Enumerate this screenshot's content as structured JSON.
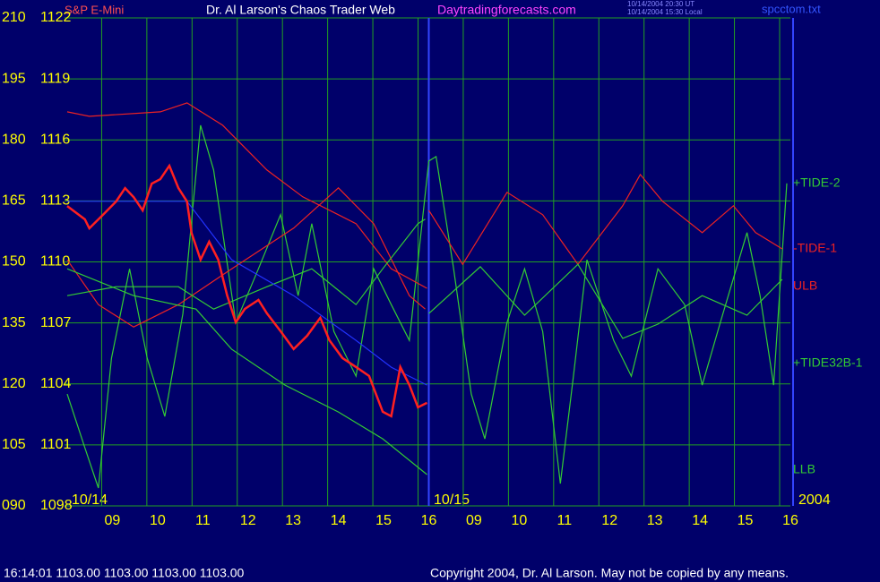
{
  "chart_data": {
    "type": "line",
    "instrument": "S&P E-Mini",
    "title": "Dr. Al Larson's Chaos Trader Web",
    "site": "Daytradingforecasts.com",
    "time_ut": "10/14/2004 20:30 UT",
    "time_local": "10/14/2004 15:30 Local",
    "file": "spcctom.txt",
    "annotations": [
      "10/14",
      "10/15",
      "2004"
    ],
    "xlim": [
      8,
      24
    ],
    "xticks": [
      {
        "value": 9,
        "label": "09"
      },
      10,
      11,
      12,
      13,
      14,
      15,
      16,
      {
        "value": 17,
        "label": "09"
      },
      {
        "value": 18,
        "label": "10"
      },
      {
        "value": 19,
        "label": "11"
      },
      {
        "value": 20,
        "label": "12"
      },
      {
        "value": 21,
        "label": "13"
      },
      {
        "value": 22,
        "label": "14"
      },
      {
        "value": 23,
        "label": "15"
      },
      {
        "value": 24,
        "label": "16"
      }
    ],
    "ylim": [
      90,
      210
    ],
    "yticks": [
      {
        "value": 90,
        "label": "090"
      },
      105,
      120,
      135,
      150,
      165,
      180,
      195,
      210
    ],
    "y2lim": [
      1098,
      1122
    ],
    "y2ticks": [
      1098,
      1101,
      1104,
      1107,
      1110,
      1113,
      1116,
      1119,
      1122
    ],
    "grid": true,
    "series": [
      {
        "name": "+TIDE-2",
        "color": "#33cc33",
        "x": [
          8,
          8.39,
          8.69,
          8.98,
          9.38,
          9.77,
          10.16,
          10.56,
          10.95,
          11.24,
          11.73,
          12.23,
          12.72,
          13.11,
          13.41,
          13.9,
          14.39,
          14.78,
          15.17,
          15.57,
          16,
          16.16,
          16.55,
          16.94,
          17.24,
          17.73,
          18.12,
          18.52,
          18.91,
          19.2,
          19.5,
          20.09,
          20.48,
          21.07,
          21.66,
          22.05,
          22.45,
          23.04,
          23.33,
          23.63,
          23.92
        ],
        "values": [
          117.5,
          104.3,
          94.4,
          126.3,
          148.3,
          126.3,
          112.0,
          137.3,
          183.6,
          172.6,
          135.1,
          148.3,
          161.6,
          141.7,
          159.4,
          132.9,
          121.9,
          148.3,
          139.5,
          130.7,
          174.8,
          175.9,
          148.3,
          117.5,
          106.5,
          135.1,
          148.3,
          132.9,
          95.5,
          121.9,
          150.5,
          130.7,
          121.9,
          148.3,
          139.5,
          119.7,
          135.1,
          157.2,
          141.7,
          119.7,
          169.3
        ]
      },
      {
        "name": "-TIDE-1",
        "color": "#ee2222",
        "x": [
          8,
          8.69,
          9.47,
          10.46,
          11.64,
          13.01,
          14,
          14.78,
          15.57,
          15.92,
          null,
          16,
          16.75,
          17.73,
          18.52,
          19.3,
          20.29,
          20.68,
          21.17,
          22.05,
          22.74,
          23.23,
          23.82
        ],
        "values": [
          150.5,
          139.5,
          134.0,
          139.5,
          148.3,
          158.3,
          168.2,
          159.4,
          141.7,
          138.4,
          null,
          162.7,
          149.4,
          167.1,
          161.6,
          149.4,
          163.8,
          171.5,
          164.9,
          157.2,
          163.8,
          157.2,
          153.2
        ]
      },
      {
        "name": "ULB",
        "color": "#ee2222",
        "x": [
          8,
          8.49,
          10.06,
          10.65,
          11.44,
          12.42,
          13.21,
          14.39,
          15.17,
          15.96
        ],
        "values": [
          186.9,
          185.8,
          186.9,
          189.1,
          183.6,
          172.6,
          166.0,
          159.4,
          148.3,
          143.5
        ]
      },
      {
        "name": "+TIDE32B-1",
        "color": "#33cc33",
        "x": [
          8,
          9.08,
          10.46,
          11.24,
          12.42,
          13.41,
          14.39,
          14.98,
          15.76,
          15.92,
          null,
          16,
          17.14,
          18.12,
          19.3,
          20.29,
          21.07,
          22.05,
          23.04,
          23.82
        ],
        "values": [
          141.7,
          143.9,
          143.9,
          138.4,
          143.9,
          148.3,
          139.5,
          148.3,
          159.4,
          160.5,
          null,
          137.3,
          148.8,
          136.9,
          149.4,
          131.2,
          134.7,
          141.7,
          136.9,
          145.7
        ]
      },
      {
        "name": "LLB",
        "color": "#33cc33",
        "x": [
          8,
          9.47,
          10.85,
          11.64,
          12.82,
          14,
          14.98,
          15.96
        ],
        "values": [
          148.3,
          141.7,
          138.4,
          128.5,
          119.7,
          113.1,
          106.5,
          97.7
        ]
      },
      {
        "color": "#2233ff",
        "x": [
          8,
          9.47,
          10.65,
          11.64,
          13.01,
          14.39,
          15.17,
          15.96
        ],
        "values": [
          164.9,
          164.9,
          164.9,
          150.5,
          141.7,
          130.7,
          124.1,
          119.7
        ]
      },
      {
        "color": "#ff2020",
        "axis": "y2",
        "x": [
          8,
          8.39,
          8.49,
          8.79,
          9.08,
          9.28,
          9.47,
          9.67,
          9.87,
          10.06,
          10.26,
          10.46,
          10.65,
          10.75,
          10.95,
          11.14,
          11.34,
          11.54,
          11.73,
          11.93,
          12.23,
          12.42,
          12.72,
          13.01,
          13.31,
          13.6,
          13.8,
          14.09,
          14.39,
          14.68,
          14.98,
          15.17,
          15.37,
          15.57,
          15.76,
          15.96
        ],
        "values": [
          1112.75,
          1112.09,
          1111.65,
          1112.31,
          1112.97,
          1113.63,
          1113.19,
          1112.53,
          1113.85,
          1114.07,
          1114.73,
          1113.63,
          1112.97,
          1111.43,
          1110.11,
          1110.99,
          1110.11,
          1108.35,
          1107.03,
          1107.69,
          1108.13,
          1107.47,
          1106.59,
          1105.71,
          1106.37,
          1107.25,
          1106.15,
          1105.27,
          1104.83,
          1104.39,
          1102.63,
          1102.41,
          1104.83,
          1103.95,
          1102.85,
          1103.07
        ]
      }
    ],
    "status": "16:14:01  1103.00 1103.00 1103.00 1103.00",
    "copyright": "Copyright 2004, Dr. Al Larson. May not be copied by any means."
  }
}
